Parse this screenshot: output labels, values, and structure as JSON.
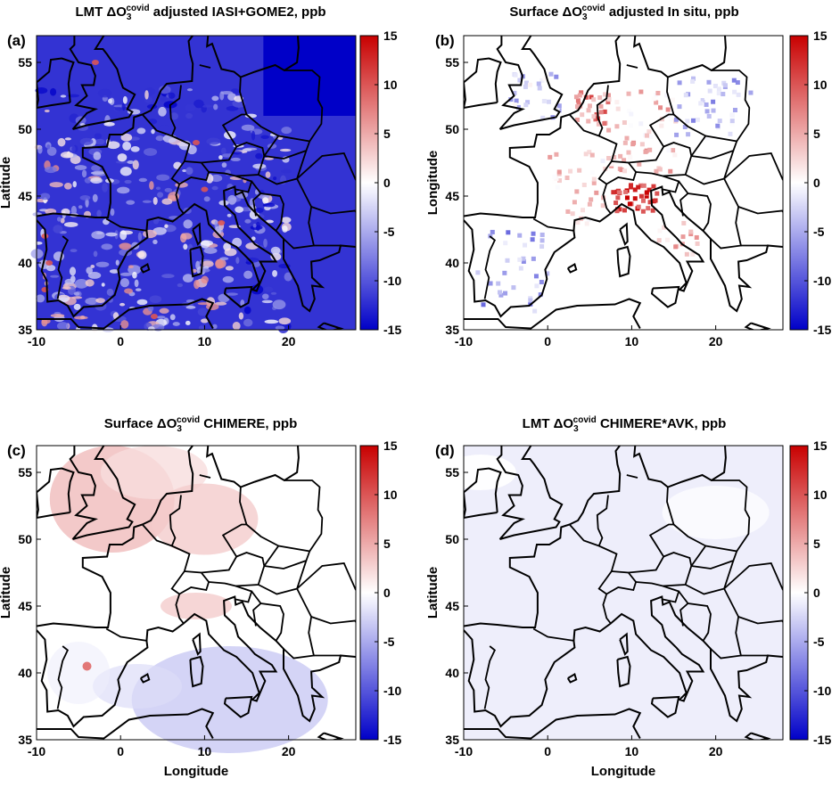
{
  "figure": {
    "colorbar": {
      "ticks": [
        15,
        10,
        5,
        0,
        -5,
        -10,
        -15
      ],
      "min": -15,
      "max": 15,
      "colors": {
        "low": "#0000c8",
        "mid": "#ffffff",
        "high": "#c80000"
      }
    },
    "land_color": "#ffffff",
    "coast_color": "#000000"
  },
  "panels": [
    {
      "letter": "(a)",
      "title_pre": "LMT ΔO",
      "title_sub": "3",
      "title_sup": "covid",
      "title_post": " adjusted IASI+GOME2, ppb",
      "ylabel": "Latitude",
      "xlabel": ""
    },
    {
      "letter": "(b)",
      "title_pre": "Surface ΔO",
      "title_sub": "3",
      "title_sup": "covid",
      "title_post": " adjusted In situ, ppb",
      "ylabel": "Longitude",
      "xlabel": ""
    },
    {
      "letter": "(c)",
      "title_pre": "Surface ΔO",
      "title_sub": "3",
      "title_sup": "covid",
      "title_post": " CHIMERE, ppb",
      "ylabel": "Latitude",
      "xlabel": "Longitude"
    },
    {
      "letter": "(d)",
      "title_pre": "LMT ΔO",
      "title_sub": "3",
      "title_sup": "covid",
      "title_post": " CHIMERE*AVK, ppb",
      "ylabel": "Latitude",
      "xlabel": "Longitude"
    }
  ],
  "chart_data": [
    {
      "type": "heatmap",
      "panel": "(a)",
      "title": "LMT ΔO3covid adjusted IASI+GOME2, ppb",
      "xlabel": "",
      "ylabel": "Latitude",
      "x_ticks": [
        -10,
        0,
        10,
        20
      ],
      "y_ticks": [
        35,
        40,
        45,
        50,
        55
      ],
      "xlim": [
        -10,
        28
      ],
      "ylim": [
        35,
        57
      ],
      "colorbar_ticks": [
        15,
        10,
        5,
        0,
        -5,
        -10,
        -15
      ],
      "clim": [
        -15,
        15
      ],
      "values": {
        "typical_ppb": -12,
        "northeast_ppb": -15,
        "scattered_positive_max_ppb": 10
      }
    },
    {
      "type": "heatmap",
      "panel": "(b)",
      "title": "Surface ΔO3covid adjusted In situ, ppb",
      "xlabel": "",
      "ylabel": "Longitude",
      "x_ticks": [
        -10,
        0,
        10,
        20
      ],
      "y_ticks": [
        35,
        40,
        45,
        50,
        55
      ],
      "xlim": [
        -10,
        28
      ],
      "ylim": [
        35,
        57
      ],
      "colorbar_ticks": [
        15,
        10,
        5,
        0,
        -5,
        -10,
        -15
      ],
      "clim": [
        -15,
        15
      ],
      "values": {
        "po_valley_ppb": 12,
        "benelux_ppb": 7,
        "central_europe_ppb": 3,
        "iberia_ppb": -5,
        "poland_ppb": -4
      }
    },
    {
      "type": "heatmap",
      "panel": "(c)",
      "title": "Surface ΔO3covid CHIMERE, ppb",
      "xlabel": "Longitude",
      "ylabel": "Latitude",
      "x_ticks": [
        -10,
        0,
        10,
        20
      ],
      "y_ticks": [
        35,
        40,
        45,
        50,
        55
      ],
      "xlim": [
        -10,
        28
      ],
      "ylim": [
        35,
        57
      ],
      "colorbar_ticks": [
        15,
        10,
        5,
        0,
        -5,
        -10,
        -15
      ],
      "clim": [
        -15,
        15
      ],
      "values": {
        "uk_benelux_ppb": 4,
        "north_sea_ppb": 2,
        "mediterranean_ppb": -3,
        "southern_europe_ppb": -1
      }
    },
    {
      "type": "heatmap",
      "panel": "(d)",
      "title": "LMT ΔO3covid CHIMERE*AVK, ppb",
      "xlabel": "Longitude",
      "ylabel": "Latitude",
      "x_ticks": [
        -10,
        0,
        10,
        20
      ],
      "y_ticks": [
        35,
        40,
        45,
        50,
        55
      ],
      "xlim": [
        -10,
        28
      ],
      "ylim": [
        35,
        57
      ],
      "colorbar_ticks": [
        15,
        10,
        5,
        0,
        -5,
        -10,
        -15
      ],
      "clim": [
        -15,
        15
      ],
      "values": {
        "domain_typical_ppb": -1
      }
    }
  ]
}
